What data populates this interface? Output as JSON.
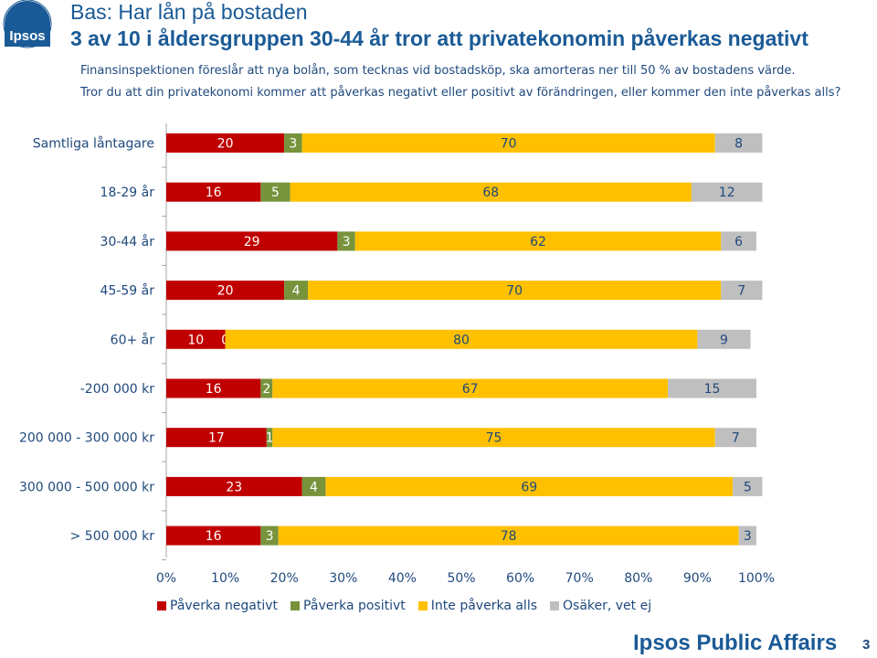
{
  "logo": {
    "text": "Ipsos"
  },
  "header": {
    "title_line1": "Bas: Har lån på bostaden",
    "title_line2": "3 av 10 i åldersgruppen 30-44 år tror att privatekonomin påverkas negativt"
  },
  "question": {
    "line1": "Finansinspektionen föreslår att nya bolån, som tecknas vid bostadsköp, ska amorteras ner till 50 % av bostadens värde.",
    "line2": "Tror du att din privatekonomi kommer att påverkas negativt eller positivt av förändringen, eller kommer den inte påverkas alls?"
  },
  "chart_data": {
    "type": "bar",
    "orientation": "horizontal",
    "stacked": true,
    "categories": [
      "Samtliga låntagare",
      "18-29 år",
      "30-44 år",
      "45-59 år",
      "60+ år",
      "-200 000 kr",
      "200 000 - 300 000 kr",
      "300 000 - 500 000 kr",
      "> 500 000 kr"
    ],
    "series": [
      {
        "name": "Påverka negativt",
        "color": "#c00000",
        "label_color": "#ffffff",
        "values": [
          20,
          16,
          29,
          20,
          10,
          16,
          17,
          23,
          16
        ]
      },
      {
        "name": "Påverka positivt",
        "color": "#77933c",
        "label_color": "#ffffff",
        "values": [
          3,
          5,
          3,
          4,
          0,
          2,
          1,
          4,
          3
        ]
      },
      {
        "name": "Inte påverka alls",
        "color": "#ffc000",
        "label_color": "#1f497d",
        "values": [
          70,
          68,
          62,
          70,
          80,
          67,
          75,
          69,
          78
        ]
      },
      {
        "name": "Osäker, vet ej",
        "color": "#bfbfbf",
        "label_color": "#1f497d",
        "values": [
          8,
          12,
          6,
          7,
          9,
          15,
          7,
          5,
          3
        ]
      }
    ],
    "xlim": [
      0,
      100
    ],
    "xticks": [
      "0%",
      "10%",
      "20%",
      "30%",
      "40%",
      "50%",
      "60%",
      "70%",
      "80%",
      "90%",
      "100%"
    ],
    "legend_position": "bottom"
  },
  "footer": {
    "brand": "Ipsos Public Affairs",
    "page_number": "3"
  }
}
